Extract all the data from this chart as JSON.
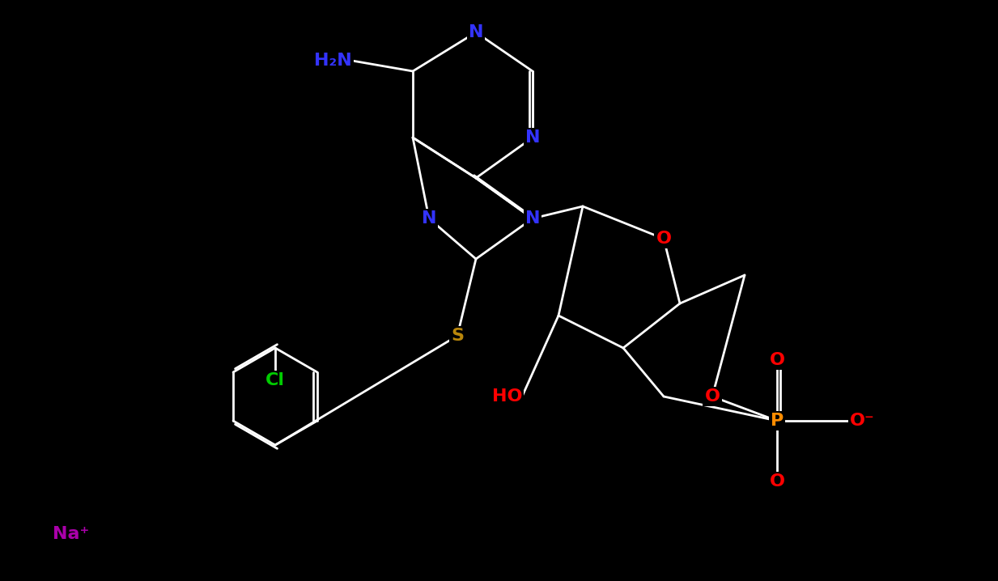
{
  "background_color": "#000000",
  "figsize": [
    12.33,
    7.18
  ],
  "dpi": 100,
  "colors": {
    "N": "#3333FF",
    "O": "#FF0000",
    "S": "#B8860B",
    "P": "#FF8C00",
    "Cl": "#00CC00",
    "Na": "#AA00AA",
    "C": "#FFFFFF",
    "bond": "#FFFFFF",
    "HO": "#FF0000",
    "H2N": "#3333FF"
  },
  "font_size": 16,
  "bond_lw": 2.0
}
